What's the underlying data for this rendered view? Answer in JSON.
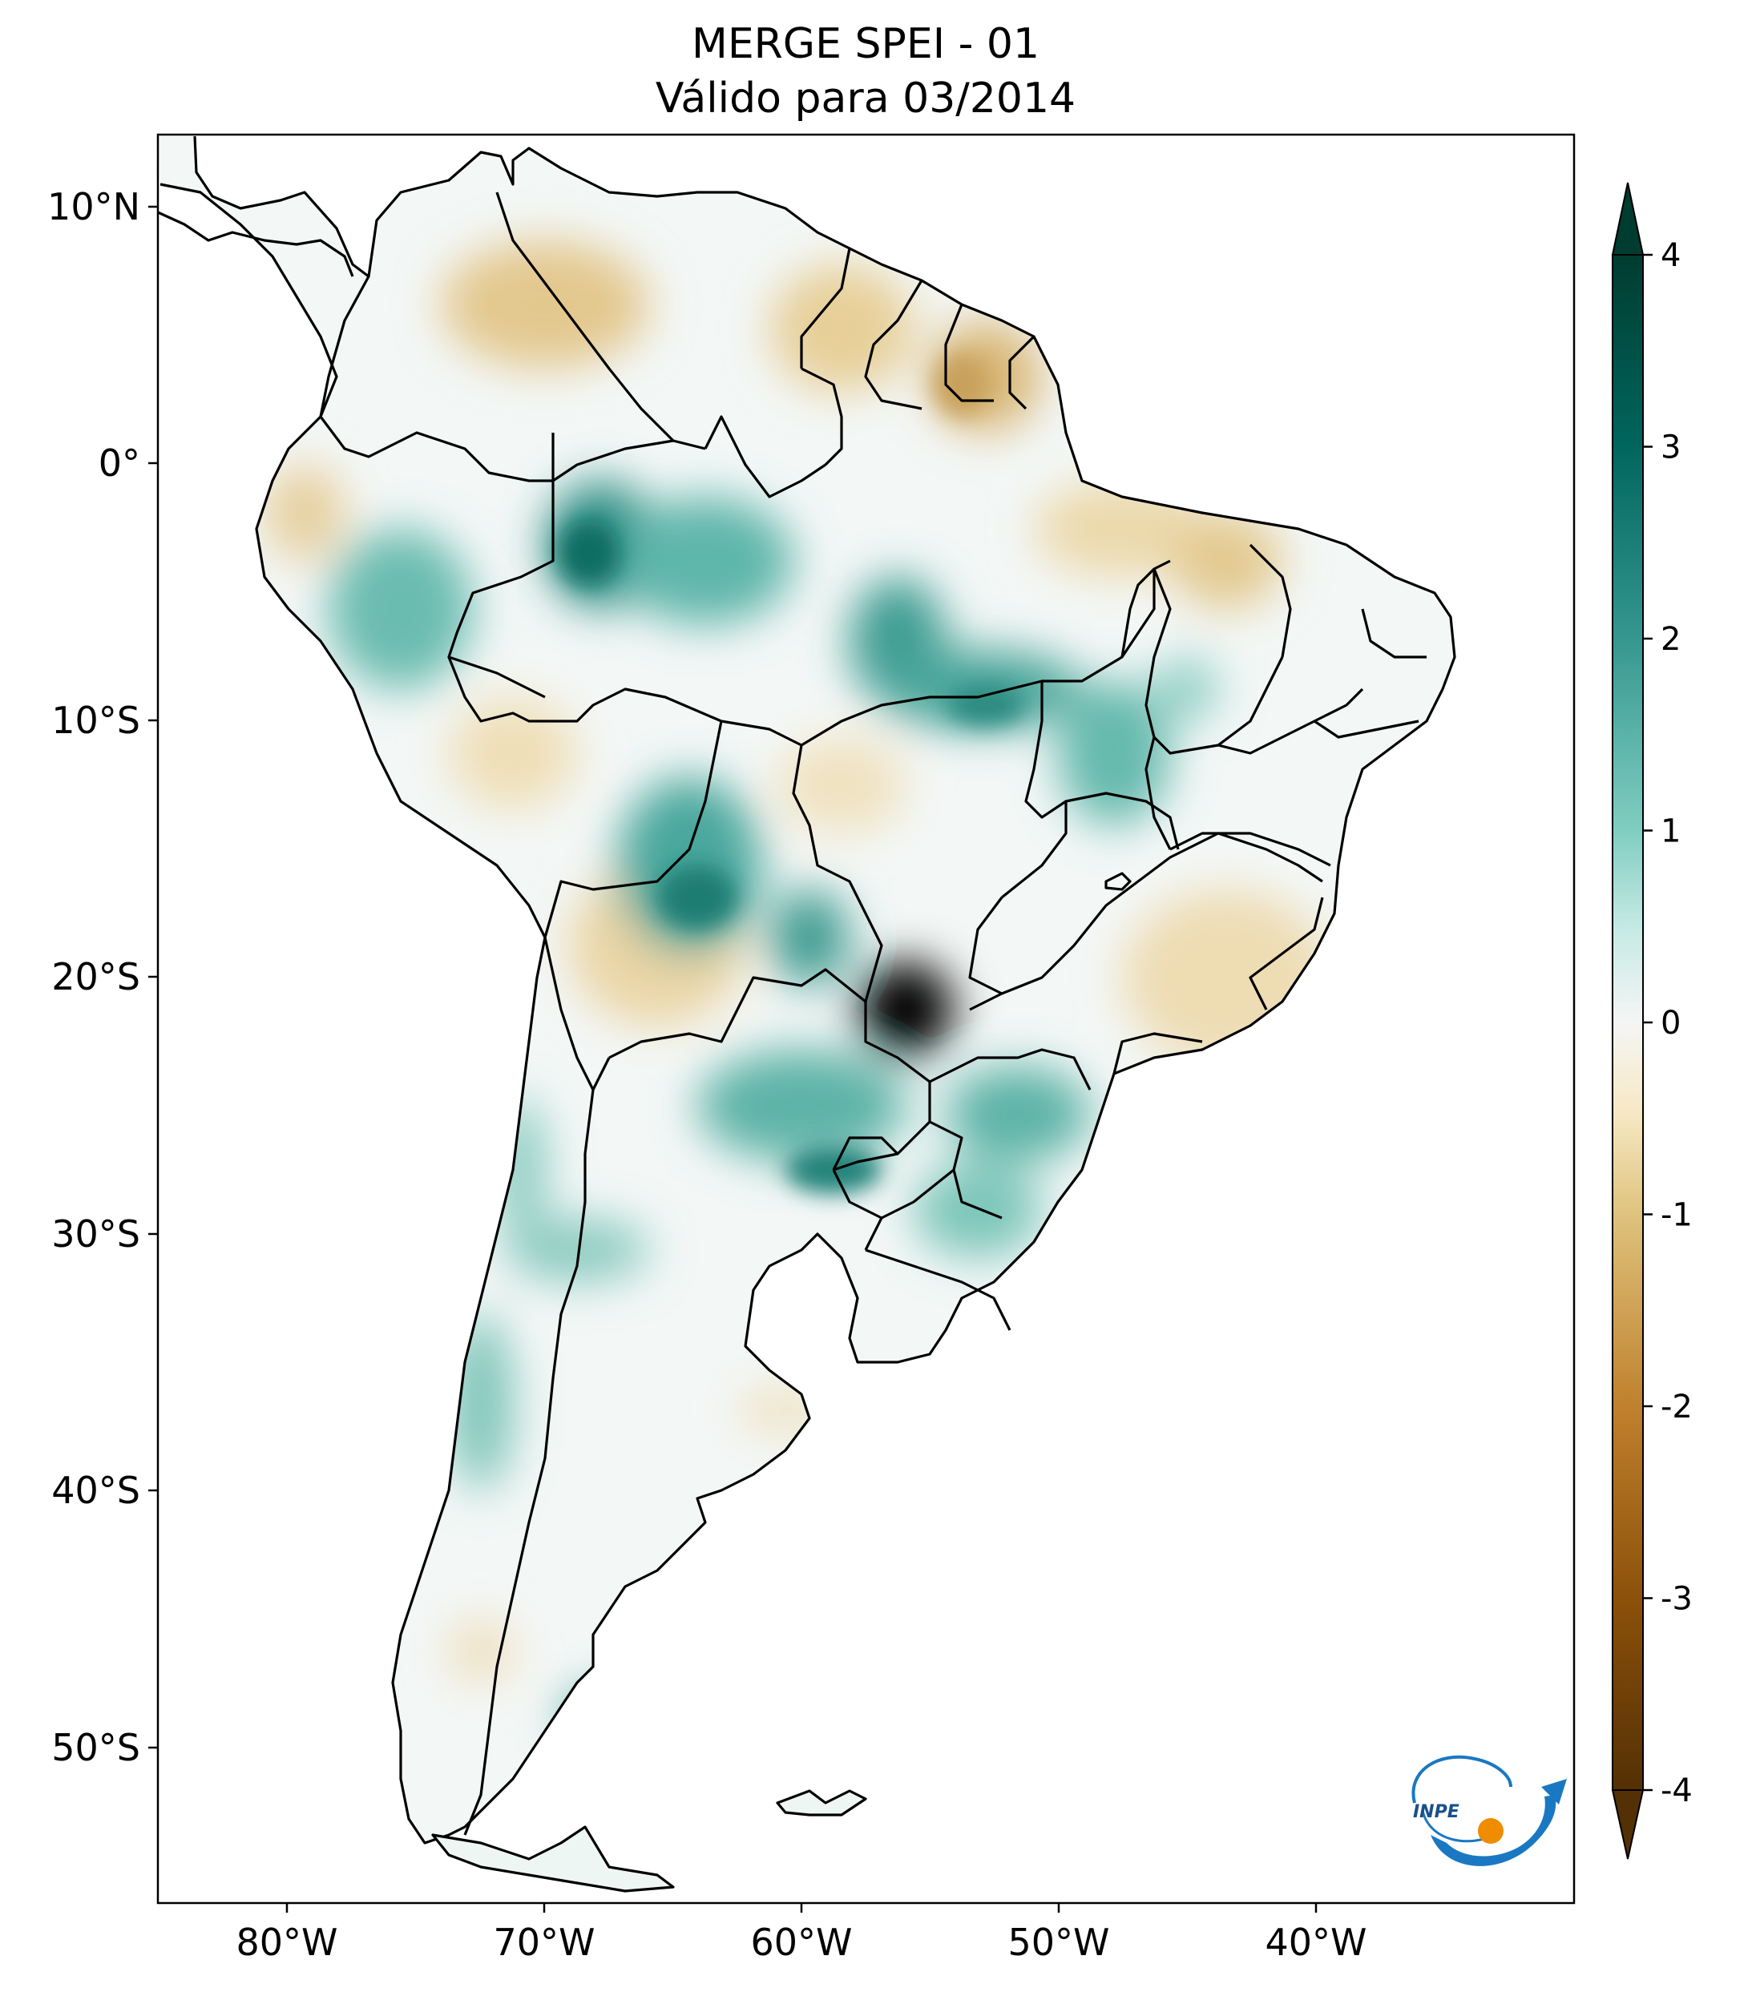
{
  "title": {
    "line1": "MERGE   SPEI - 01",
    "line2": "Válido para 03/2014"
  },
  "axes": {
    "lat_ticks": [
      "10°N",
      "0°",
      "10°S",
      "20°S",
      "30°S",
      "40°S",
      "50°S"
    ],
    "lon_ticks": [
      "80°W",
      "70°W",
      "60°W",
      "50°W",
      "40°W"
    ],
    "lon_range": [
      -85,
      -30
    ],
    "lat_range": [
      -56,
      13
    ]
  },
  "colorbar": {
    "ticks": [
      "4",
      "3",
      "2",
      "1",
      "0",
      "-1",
      "-2",
      "-3",
      "-4"
    ],
    "range": [
      -4,
      4
    ],
    "extend": "both",
    "colormap": "BrBG",
    "colors": {
      "neg4": "#543005",
      "neg3": "#8c510a",
      "neg2": "#bf812d",
      "neg1": "#dfc27d",
      "neg05": "#f6e8c3",
      "zero": "#f5f5f5",
      "pos05": "#c7eae5",
      "pos1": "#80cdc1",
      "pos2": "#35978f",
      "pos3": "#01665e",
      "pos4": "#003c30"
    }
  },
  "logo": {
    "text": "INPE",
    "icon": "inpe-logo-icon"
  }
}
